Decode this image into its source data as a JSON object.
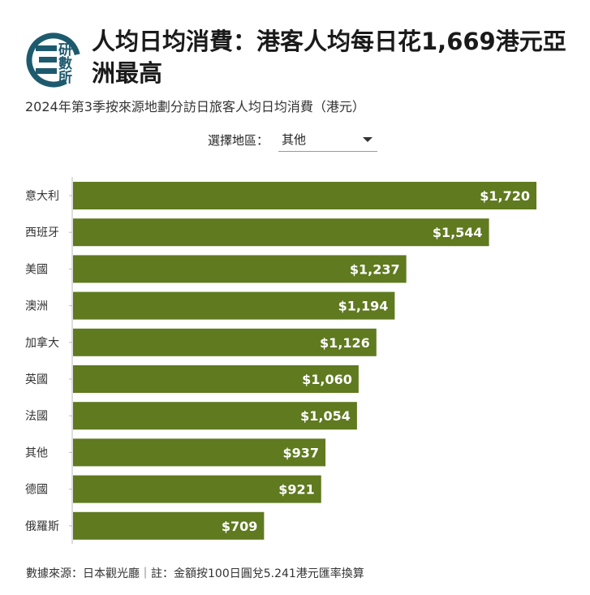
{
  "header": {
    "headline": "人均日均消費：港客人均每日花1,669港元亞洲最高",
    "subtitle": "2024年第3季按來源地劃分訪日旅客人均日均消費（港元）"
  },
  "logo": {
    "text": "研數所",
    "color": "#1e5a6e"
  },
  "filter": {
    "label": "選擇地區：",
    "selected": "其他"
  },
  "chart_data": {
    "type": "bar",
    "orientation": "horizontal",
    "categories": [
      "意大利",
      "西班牙",
      "美國",
      "澳洲",
      "加拿大",
      "英國",
      "法國",
      "其他",
      "德國",
      "俄羅斯"
    ],
    "values": [
      1720,
      1544,
      1237,
      1194,
      1126,
      1060,
      1054,
      937,
      921,
      709
    ],
    "data_labels": [
      "$1,720",
      "$1,544",
      "$1,237",
      "$1,194",
      "$1,126",
      "$1,060",
      "$1,054",
      "$937",
      "$921",
      "$709"
    ],
    "xlim": [
      0,
      1900
    ],
    "bar_color": "#5f7a1f",
    "grid": false,
    "legend": "none"
  },
  "footer": {
    "note": "數據來源：日本觀光廳｜註：金額按100日圓兌5.241港元匯率換算"
  }
}
